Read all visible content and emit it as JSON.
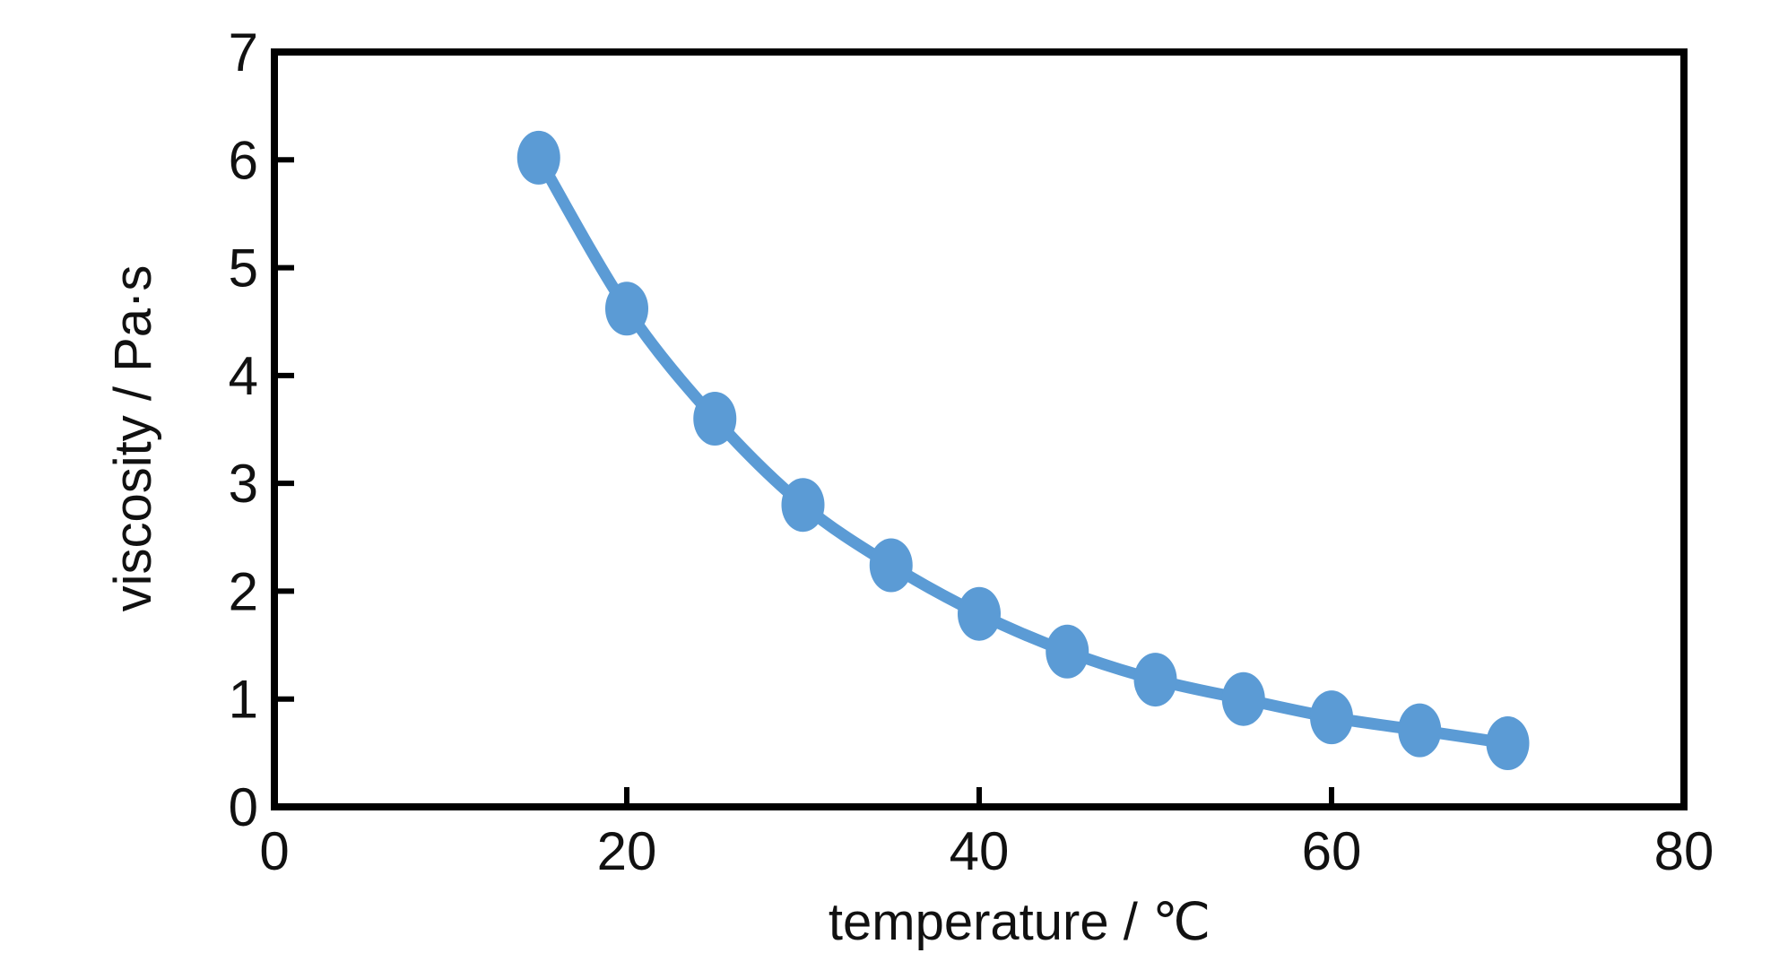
{
  "chart_data": {
    "type": "line",
    "title": "",
    "xlabel": "temperature / ℃",
    "ylabel": "viscosity / Pa·s",
    "xlim": [
      0,
      80
    ],
    "ylim": [
      0,
      7
    ],
    "x_ticks": [
      "0",
      "20",
      "40",
      "60",
      "80"
    ],
    "y_ticks": [
      "0",
      "1",
      "2",
      "3",
      "4",
      "5",
      "6",
      "7"
    ],
    "grid": false,
    "legend": "none",
    "series": [
      {
        "color": "#5B9BD5",
        "marker": "circle",
        "line": "smooth",
        "x": [
          15,
          20,
          25,
          30,
          35,
          40,
          45,
          50,
          55,
          60,
          65,
          70
        ],
        "y": [
          6.02,
          4.62,
          3.6,
          2.8,
          2.24,
          1.79,
          1.44,
          1.18,
          1.0,
          0.83,
          0.71,
          0.59
        ]
      }
    ]
  }
}
